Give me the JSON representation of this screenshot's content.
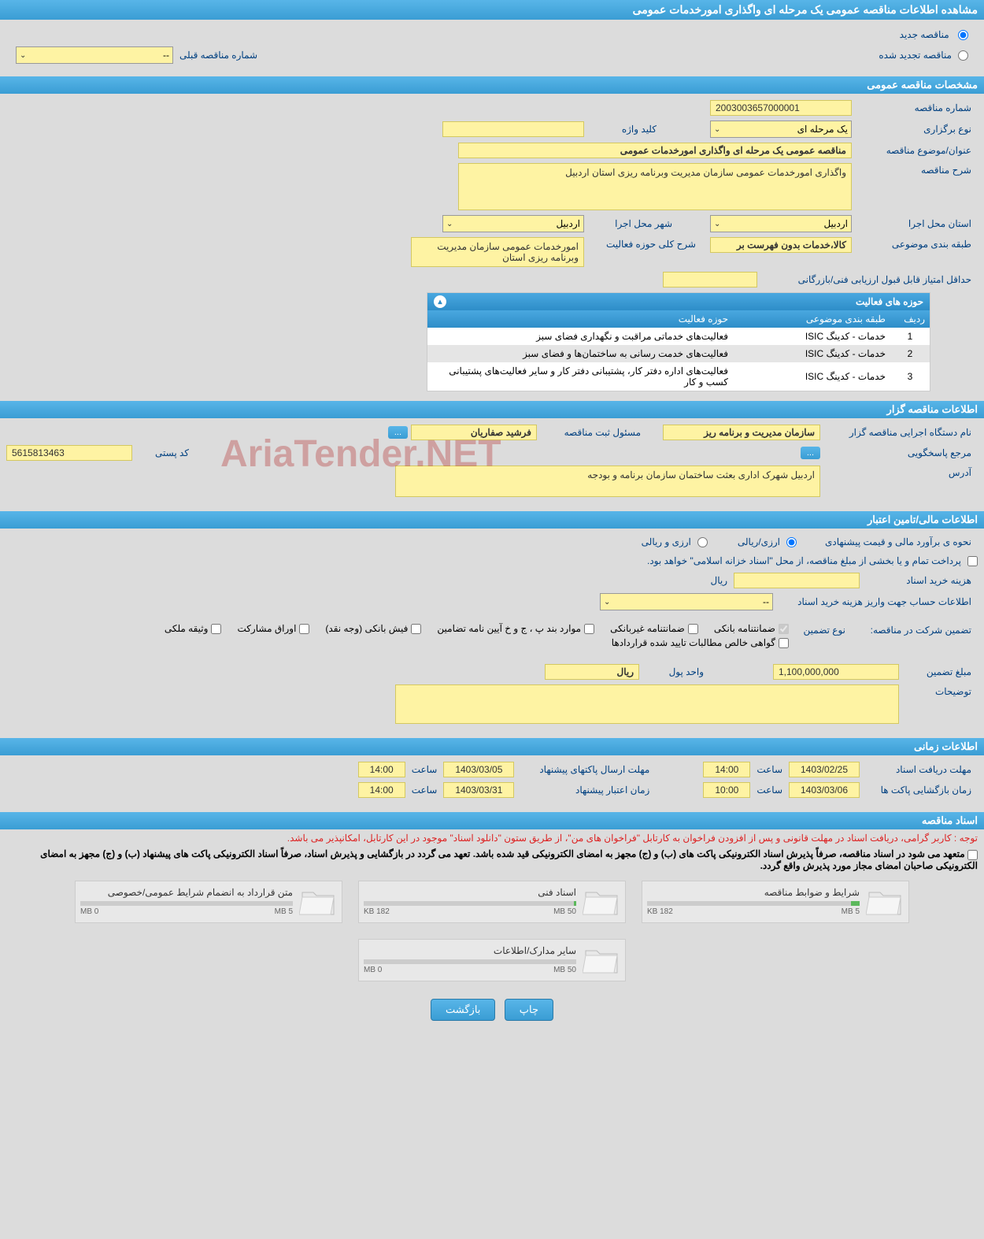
{
  "page_title": "مشاهده اطلاعات مناقصه عمومی یک مرحله ای واگذاری امورخدمات عمومی",
  "radio_options": {
    "new_tender": "مناقصه جدید",
    "renewed_tender": "مناقصه تجدید شده"
  },
  "prev_tender": {
    "label": "شماره مناقصه قبلی",
    "value": "--"
  },
  "sections": {
    "general": "مشخصات مناقصه عمومی",
    "organizer": "اطلاعات مناقصه گزار",
    "financial": "اطلاعات مالی/تامین اعتبار",
    "timing": "اطلاعات زمانی",
    "documents": "اسناد مناقصه"
  },
  "general": {
    "tender_no_label": "شماره مناقصه",
    "tender_no": "2003003657000001",
    "type_label": "نوع برگزاری",
    "type_value": "یک مرحله ای",
    "keyword_label": "کلید واژه",
    "keyword_value": "",
    "title_label": "عنوان/موضوع مناقصه",
    "title_value": "مناقصه عمومی یک مرحله ای واگذاری امورخدمات عمومی",
    "desc_label": "شرح مناقصه",
    "desc_value": "واگذاری امورخدمات عمومی سازمان مدیریت وبرنامه ریزی استان اردبیل",
    "province_label": "استان محل اجرا",
    "province_value": "اردبیل",
    "city_label": "شهر محل اجرا",
    "city_value": "اردبیل",
    "category_label": "طبقه بندی موضوعی",
    "category_value": "کالا،خدمات بدون فهرست بر",
    "activity_desc_label": "شرح کلی حوزه فعالیت",
    "activity_desc_value": "امورخدمات عمومی سازمان مدیریت وبرنامه ریزی استان",
    "min_score_label": "حداقل امتیاز قابل قبول ارزیابی فنی/بازرگانی",
    "min_score_value": ""
  },
  "activity_table": {
    "title": "حوزه های فعالیت",
    "columns": [
      "ردیف",
      "طبقه بندی موضوعی",
      "حوزه فعالیت"
    ],
    "rows": [
      [
        "1",
        "خدمات - کدینگ ISIC",
        "فعالیت‌های خدماتی مراقبت و نگهداری فضای سبز"
      ],
      [
        "2",
        "خدمات - کدینگ ISIC",
        "فعالیت‌های خدمت رسانی به ساختمان‌ها و فضای سبز"
      ],
      [
        "3",
        "خدمات - کدینگ ISIC",
        "فعالیت‌های اداره دفتر کار، پشتیبانی دفتر کار و سایر فعالیت‌های پشتیبانی کسب و کار"
      ]
    ]
  },
  "organizer": {
    "org_label": "نام دستگاه اجرایی مناقصه گزار",
    "org_value": "سازمان مدیریت و برنامه ریز",
    "responsible_label": "مسئول ثبت مناقصه",
    "responsible_value": "فرشید صفاریان",
    "reference_label": "مرجع پاسخگویی",
    "postal_label": "کد پستی",
    "postal_value": "5615813463",
    "address_label": "آدرس",
    "address_value": "اردبیل شهرک اداری بعثت ساختمان سازمان برنامه و بودجه"
  },
  "financial": {
    "estimate_label": "نحوه ی برآورد مالی و قیمت پیشنهادی",
    "opt_rial": "ارزی/ریالی",
    "opt_currency": "ارزی و ریالی",
    "payment_note": "پرداخت تمام و یا بخشی از مبلغ مناقصه، از محل \"اسناد خزانه اسلامی\" خواهد بود.",
    "doc_cost_label": "هزینه خرید اسناد",
    "doc_cost_unit": "ریال",
    "account_label": "اطلاعات حساب جهت واریز هزینه خرید اسناد",
    "account_value": "--",
    "guarantee_label": "تضمین شرکت در مناقصه:",
    "guarantee_type_label": "نوع تضمین",
    "guarantee_types": {
      "bank": "ضمانتنامه بانکی",
      "nonbank": "ضمانتنامه غیربانکی",
      "clause": "موارد بند پ ، ج و خ آیین نامه تضامین",
      "cash": "فیش بانکی (وجه نقد)",
      "securities": "اوراق مشارکت",
      "property": "وثیقه ملکی",
      "verified": "گواهی خالص مطالبات تایید شده قراردادها"
    },
    "amount_label": "مبلغ تضمین",
    "amount_value": "1,100,000,000",
    "unit_label": "واحد پول",
    "unit_value": "ریال",
    "notes_label": "توضیحات"
  },
  "timing": {
    "receive_label": "مهلت دریافت اسناد",
    "receive_date": "1403/02/25",
    "receive_time": "14:00",
    "submit_label": "مهلت ارسال پاکتهای پیشنهاد",
    "submit_date": "1403/03/05",
    "submit_time": "14:00",
    "open_label": "زمان بازگشایی پاکت ها",
    "open_date": "1403/03/06",
    "open_time": "10:00",
    "validity_label": "زمان اعتبار پیشنهاد",
    "validity_date": "1403/03/31",
    "validity_time": "14:00",
    "time_label": "ساعت"
  },
  "documents": {
    "notice1": "توجه : کاربر گرامی، دریافت اسناد در مهلت قانونی و پس از افزودن فراخوان به کارتابل \"فراخوان های من\"، از طریق ستون \"دانلود اسناد\" موجود در این کارتابل، امکانپذیر می باشد.",
    "notice2": "متعهد می شود در اسناد مناقصه، صرفاً پذیرش اسناد الکترونیکی پاکت های (ب) و (ج) مجهز به امضای الکترونیکی قید شده باشد. تعهد می گردد در بازگشایی و پذیرش اسناد، صرفاً اسناد الکترونیکی پاکت های پیشنهاد (ب) و (ج) مجهز به امضای الکترونیکی صاحبان امضای مجاز مورد پذیرش واقع گردد.",
    "items": [
      {
        "title": "شرایط و ضوابط مناقصه",
        "used": "182 KB",
        "total": "5 MB",
        "fill_pct": 4
      },
      {
        "title": "اسناد فنی",
        "used": "182 KB",
        "total": "50 MB",
        "fill_pct": 1
      },
      {
        "title": "متن قرارداد به انضمام شرایط عمومی/خصوصی",
        "used": "0 MB",
        "total": "5 MB",
        "fill_pct": 0
      },
      {
        "title": "سایر مدارک/اطلاعات",
        "used": "0 MB",
        "total": "50 MB",
        "fill_pct": 0
      }
    ]
  },
  "buttons": {
    "print": "چاپ",
    "back": "بازگشت",
    "ellipsis": "..."
  },
  "watermark": "AriaTender.NET",
  "colors": {
    "header_bg1": "#58b5e8",
    "header_bg2": "#3a9dd4",
    "yellow_bg": "#fef3a3",
    "page_bg": "#dcdcdc"
  }
}
